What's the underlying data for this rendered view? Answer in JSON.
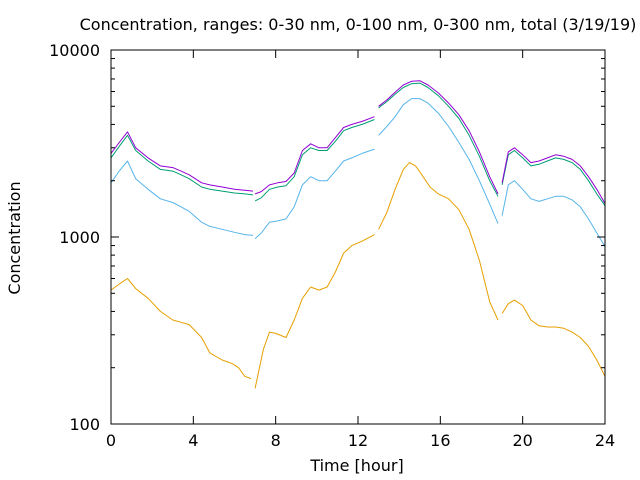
{
  "chart_data": {
    "type": "line",
    "title": "Concentration, ranges: 0-30 nm, 0-100 nm, 0-300 nm, total (3/19/19)",
    "xlabel": "Time [hour]",
    "ylabel": "Concentration",
    "xlim": [
      0,
      24
    ],
    "ylim": [
      100,
      10000
    ],
    "yscale": "log",
    "grid": false,
    "legend": "none",
    "x_ticks": [
      0,
      4,
      8,
      12,
      16,
      20,
      24
    ],
    "x_tick_labels": [
      "0",
      "4",
      "8",
      "12",
      "16",
      "20",
      "24"
    ],
    "y_ticks": [
      100,
      1000,
      10000
    ],
    "y_tick_labels": [
      "100",
      "1000",
      "10000"
    ],
    "series": [
      {
        "color": "#e69f00",
        "segments": [
          {
            "x": [
              0,
              0.4,
              0.8,
              1.2,
              1.8,
              2.4,
              3.0,
              3.4,
              3.8,
              4.4,
              4.8,
              5.4,
              5.9,
              6.2,
              6.5,
              6.8
            ],
            "y": [
              520,
              560,
              600,
              530,
              470,
              400,
              360,
              350,
              340,
              290,
              240,
              220,
              210,
              200,
              180,
              175
            ]
          },
          {
            "x": [
              7.0,
              7.4,
              7.7,
              8.0,
              8.5,
              8.9,
              9.3,
              9.7,
              10.1,
              10.5,
              10.9,
              11.3,
              11.7,
              12.2,
              12.8
            ],
            "y": [
              155,
              250,
              310,
              305,
              290,
              360,
              470,
              540,
              520,
              540,
              650,
              820,
              900,
              950,
              1030
            ]
          },
          {
            "x": [
              13.0,
              13.4,
              13.8,
              14.2,
              14.5,
              14.8,
              15.1,
              15.5,
              15.9,
              16.4,
              16.9,
              17.4,
              17.9,
              18.4,
              18.8
            ],
            "y": [
              1100,
              1350,
              1800,
              2300,
              2500,
              2400,
              2150,
              1850,
              1700,
              1600,
              1400,
              1100,
              750,
              450,
              360
            ]
          },
          {
            "x": [
              19.0,
              19.3,
              19.6,
              20.0,
              20.4,
              20.8,
              21.2,
              21.6,
              22.0,
              22.4,
              22.8,
              23.2,
              23.6,
              24.0
            ],
            "y": [
              390,
              440,
              460,
              430,
              360,
              335,
              330,
              330,
              325,
              310,
              290,
              260,
              220,
              180
            ]
          }
        ]
      },
      {
        "color": "#56b4e9",
        "segments": [
          {
            "x": [
              0,
              0.4,
              0.8,
              1.2,
              1.8,
              2.4,
              3.0,
              3.4,
              3.8,
              4.4,
              4.8,
              5.4,
              6.0,
              6.5,
              6.9
            ],
            "y": [
              1950,
              2250,
              2550,
              2050,
              1800,
              1600,
              1530,
              1450,
              1370,
              1200,
              1140,
              1100,
              1060,
              1030,
              1020
            ]
          },
          {
            "x": [
              7.0,
              7.3,
              7.7,
              8.1,
              8.5,
              8.9,
              9.3,
              9.7,
              10.1,
              10.5,
              10.9,
              11.3,
              11.7,
              12.2,
              12.8
            ],
            "y": [
              980,
              1050,
              1200,
              1220,
              1250,
              1450,
              1900,
              2100,
              2000,
              2000,
              2250,
              2550,
              2650,
              2800,
              2950
            ]
          },
          {
            "x": [
              13.0,
              13.4,
              13.8,
              14.2,
              14.6,
              15.0,
              15.4,
              15.9,
              16.4,
              16.9,
              17.4,
              17.9,
              18.4,
              18.8
            ],
            "y": [
              3500,
              3900,
              4400,
              5100,
              5500,
              5500,
              5200,
              4600,
              3900,
              3200,
              2600,
              2000,
              1500,
              1180
            ]
          },
          {
            "x": [
              19.0,
              19.3,
              19.6,
              20.0,
              20.4,
              20.8,
              21.2,
              21.6,
              22.0,
              22.4,
              22.8,
              23.2,
              23.6,
              24.0
            ],
            "y": [
              1300,
              1900,
              2000,
              1800,
              1600,
              1550,
              1600,
              1650,
              1650,
              1580,
              1450,
              1250,
              1050,
              890
            ]
          }
        ]
      },
      {
        "color": "#009e73",
        "segments": [
          {
            "x": [
              0,
              0.4,
              0.8,
              1.2,
              1.8,
              2.4,
              3.0,
              3.4,
              3.8,
              4.4,
              4.8,
              5.4,
              6.0,
              6.5,
              6.9
            ],
            "y": [
              2650,
              3050,
              3500,
              2900,
              2550,
              2300,
              2250,
              2150,
              2050,
              1850,
              1800,
              1760,
              1720,
              1700,
              1680
            ]
          },
          {
            "x": [
              7.0,
              7.3,
              7.7,
              8.1,
              8.5,
              8.9,
              9.3,
              9.7,
              10.1,
              10.5,
              10.9,
              11.3,
              11.7,
              12.2,
              12.8
            ],
            "y": [
              1560,
              1620,
              1800,
              1850,
              1880,
              2100,
              2750,
              3000,
              2900,
              2900,
              3250,
              3700,
              3850,
              4000,
              4250
            ]
          },
          {
            "x": [
              13.0,
              13.4,
              13.8,
              14.2,
              14.6,
              15.0,
              15.4,
              15.9,
              16.4,
              16.9,
              17.4,
              17.9,
              18.4,
              18.8
            ],
            "y": [
              4900,
              5300,
              5800,
              6300,
              6600,
              6650,
              6300,
              5700,
              5000,
              4300,
              3500,
              2700,
              2000,
              1650
            ]
          },
          {
            "x": [
              19.0,
              19.3,
              19.6,
              20.0,
              20.4,
              20.8,
              21.2,
              21.6,
              22.0,
              22.4,
              22.8,
              23.2,
              23.6,
              24.0
            ],
            "y": [
              1900,
              2750,
              2900,
              2650,
              2400,
              2450,
              2550,
              2650,
              2600,
              2500,
              2300,
              2000,
              1700,
              1470
            ]
          }
        ]
      },
      {
        "color": "#9400d3",
        "segments": [
          {
            "x": [
              0,
              0.4,
              0.8,
              1.2,
              1.8,
              2.4,
              3.0,
              3.4,
              3.8,
              4.4,
              4.8,
              5.4,
              6.0,
              6.5,
              6.9
            ],
            "y": [
              2800,
              3200,
              3650,
              3000,
              2650,
              2400,
              2350,
              2250,
              2150,
              1950,
              1900,
              1850,
              1800,
              1780,
              1760
            ]
          },
          {
            "x": [
              7.0,
              7.3,
              7.7,
              8.1,
              8.5,
              8.9,
              9.3,
              9.7,
              10.1,
              10.5,
              10.9,
              11.3,
              11.7,
              12.2,
              12.8
            ],
            "y": [
              1700,
              1750,
              1900,
              1950,
              1980,
              2200,
              2900,
              3150,
              3000,
              3000,
              3400,
              3850,
              4000,
              4150,
              4400
            ]
          },
          {
            "x": [
              13.0,
              13.4,
              13.8,
              14.2,
              14.6,
              15.0,
              15.4,
              15.9,
              16.4,
              16.9,
              17.4,
              17.9,
              18.4,
              18.8
            ],
            "y": [
              5000,
              5400,
              5950,
              6500,
              6800,
              6850,
              6500,
              5900,
              5200,
              4500,
              3700,
              2850,
              2100,
              1700
            ]
          },
          {
            "x": [
              19.0,
              19.3,
              19.6,
              20.0,
              20.4,
              20.8,
              21.2,
              21.6,
              22.0,
              22.4,
              22.8,
              23.2,
              23.6,
              24.0
            ],
            "y": [
              1950,
              2850,
              3000,
              2750,
              2500,
              2550,
              2650,
              2750,
              2700,
              2600,
              2400,
              2100,
              1800,
              1510
            ]
          }
        ]
      }
    ]
  }
}
